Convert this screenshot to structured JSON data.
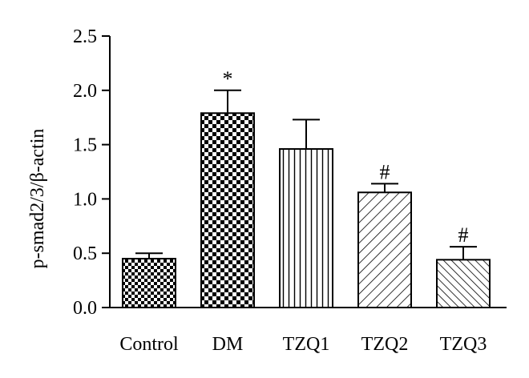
{
  "chart_data": {
    "type": "bar",
    "title": "",
    "xlabel": "",
    "ylabel": "p-smad2/3/β-actin",
    "ylim": [
      0,
      2.5
    ],
    "yticks": [
      "0.0",
      "0.5",
      "1.0",
      "1.5",
      "2.0",
      "2.5"
    ],
    "categories": [
      "Control",
      "DM",
      "TZQ1",
      "TZQ2",
      "TZQ3"
    ],
    "values": [
      0.45,
      1.79,
      1.46,
      1.06,
      0.44
    ],
    "errors": [
      0.05,
      0.21,
      0.27,
      0.08,
      0.12
    ],
    "annotations": [
      "",
      "*",
      "",
      "#",
      "#"
    ],
    "patterns": [
      "small-checker",
      "large-checker",
      "vertical-lines",
      "diagonal-up",
      "diagonal-down"
    ],
    "grid": false,
    "legend": "none"
  }
}
